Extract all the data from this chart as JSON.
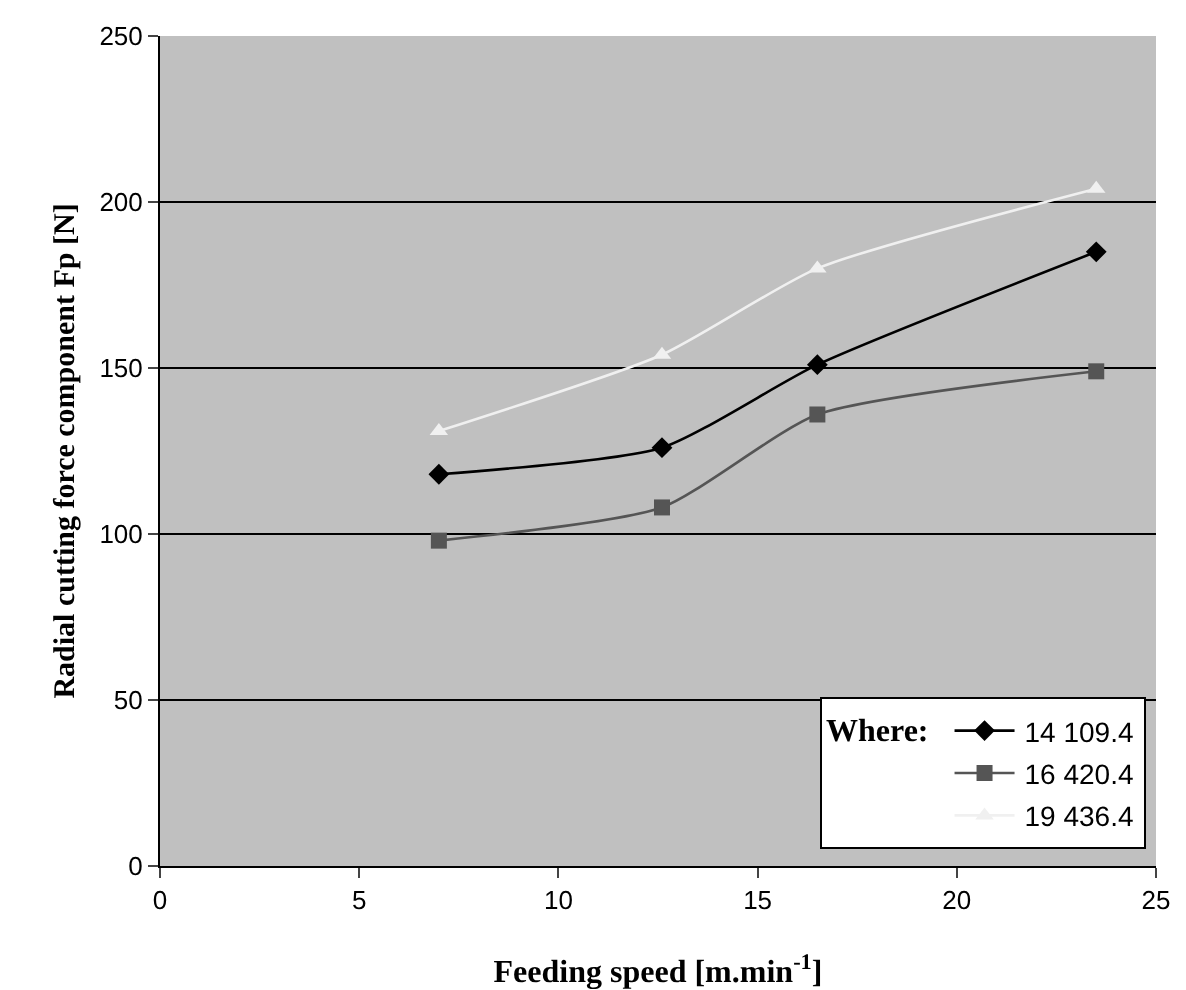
{
  "chart_data": {
    "type": "line",
    "xlabel": "Feeding speed [m.min$^{-1}$]",
    "ylabel": "Radial cutting force component Fp [N]",
    "legend_title": "Where:",
    "x": [
      7,
      12.6,
      16.5,
      23.5
    ],
    "series": [
      {
        "name": "14 109.4",
        "color": "#000000",
        "marker": "diamond",
        "values": [
          118,
          126,
          151,
          185
        ]
      },
      {
        "name": "16 420.4",
        "color": "#555555",
        "marker": "square",
        "values": [
          98,
          108,
          136,
          149
        ]
      },
      {
        "name": "19 436.4",
        "color": "#f0f0f0",
        "marker": "triangle",
        "values": [
          131,
          154,
          180,
          204
        ]
      }
    ],
    "xlim": [
      0,
      25
    ],
    "xticks": [
      0,
      5,
      10,
      15,
      20,
      25
    ],
    "ylim": [
      0,
      250
    ],
    "yticks": [
      0,
      50,
      100,
      150,
      200,
      250
    ],
    "grid": "y",
    "legend": "bottom right"
  }
}
